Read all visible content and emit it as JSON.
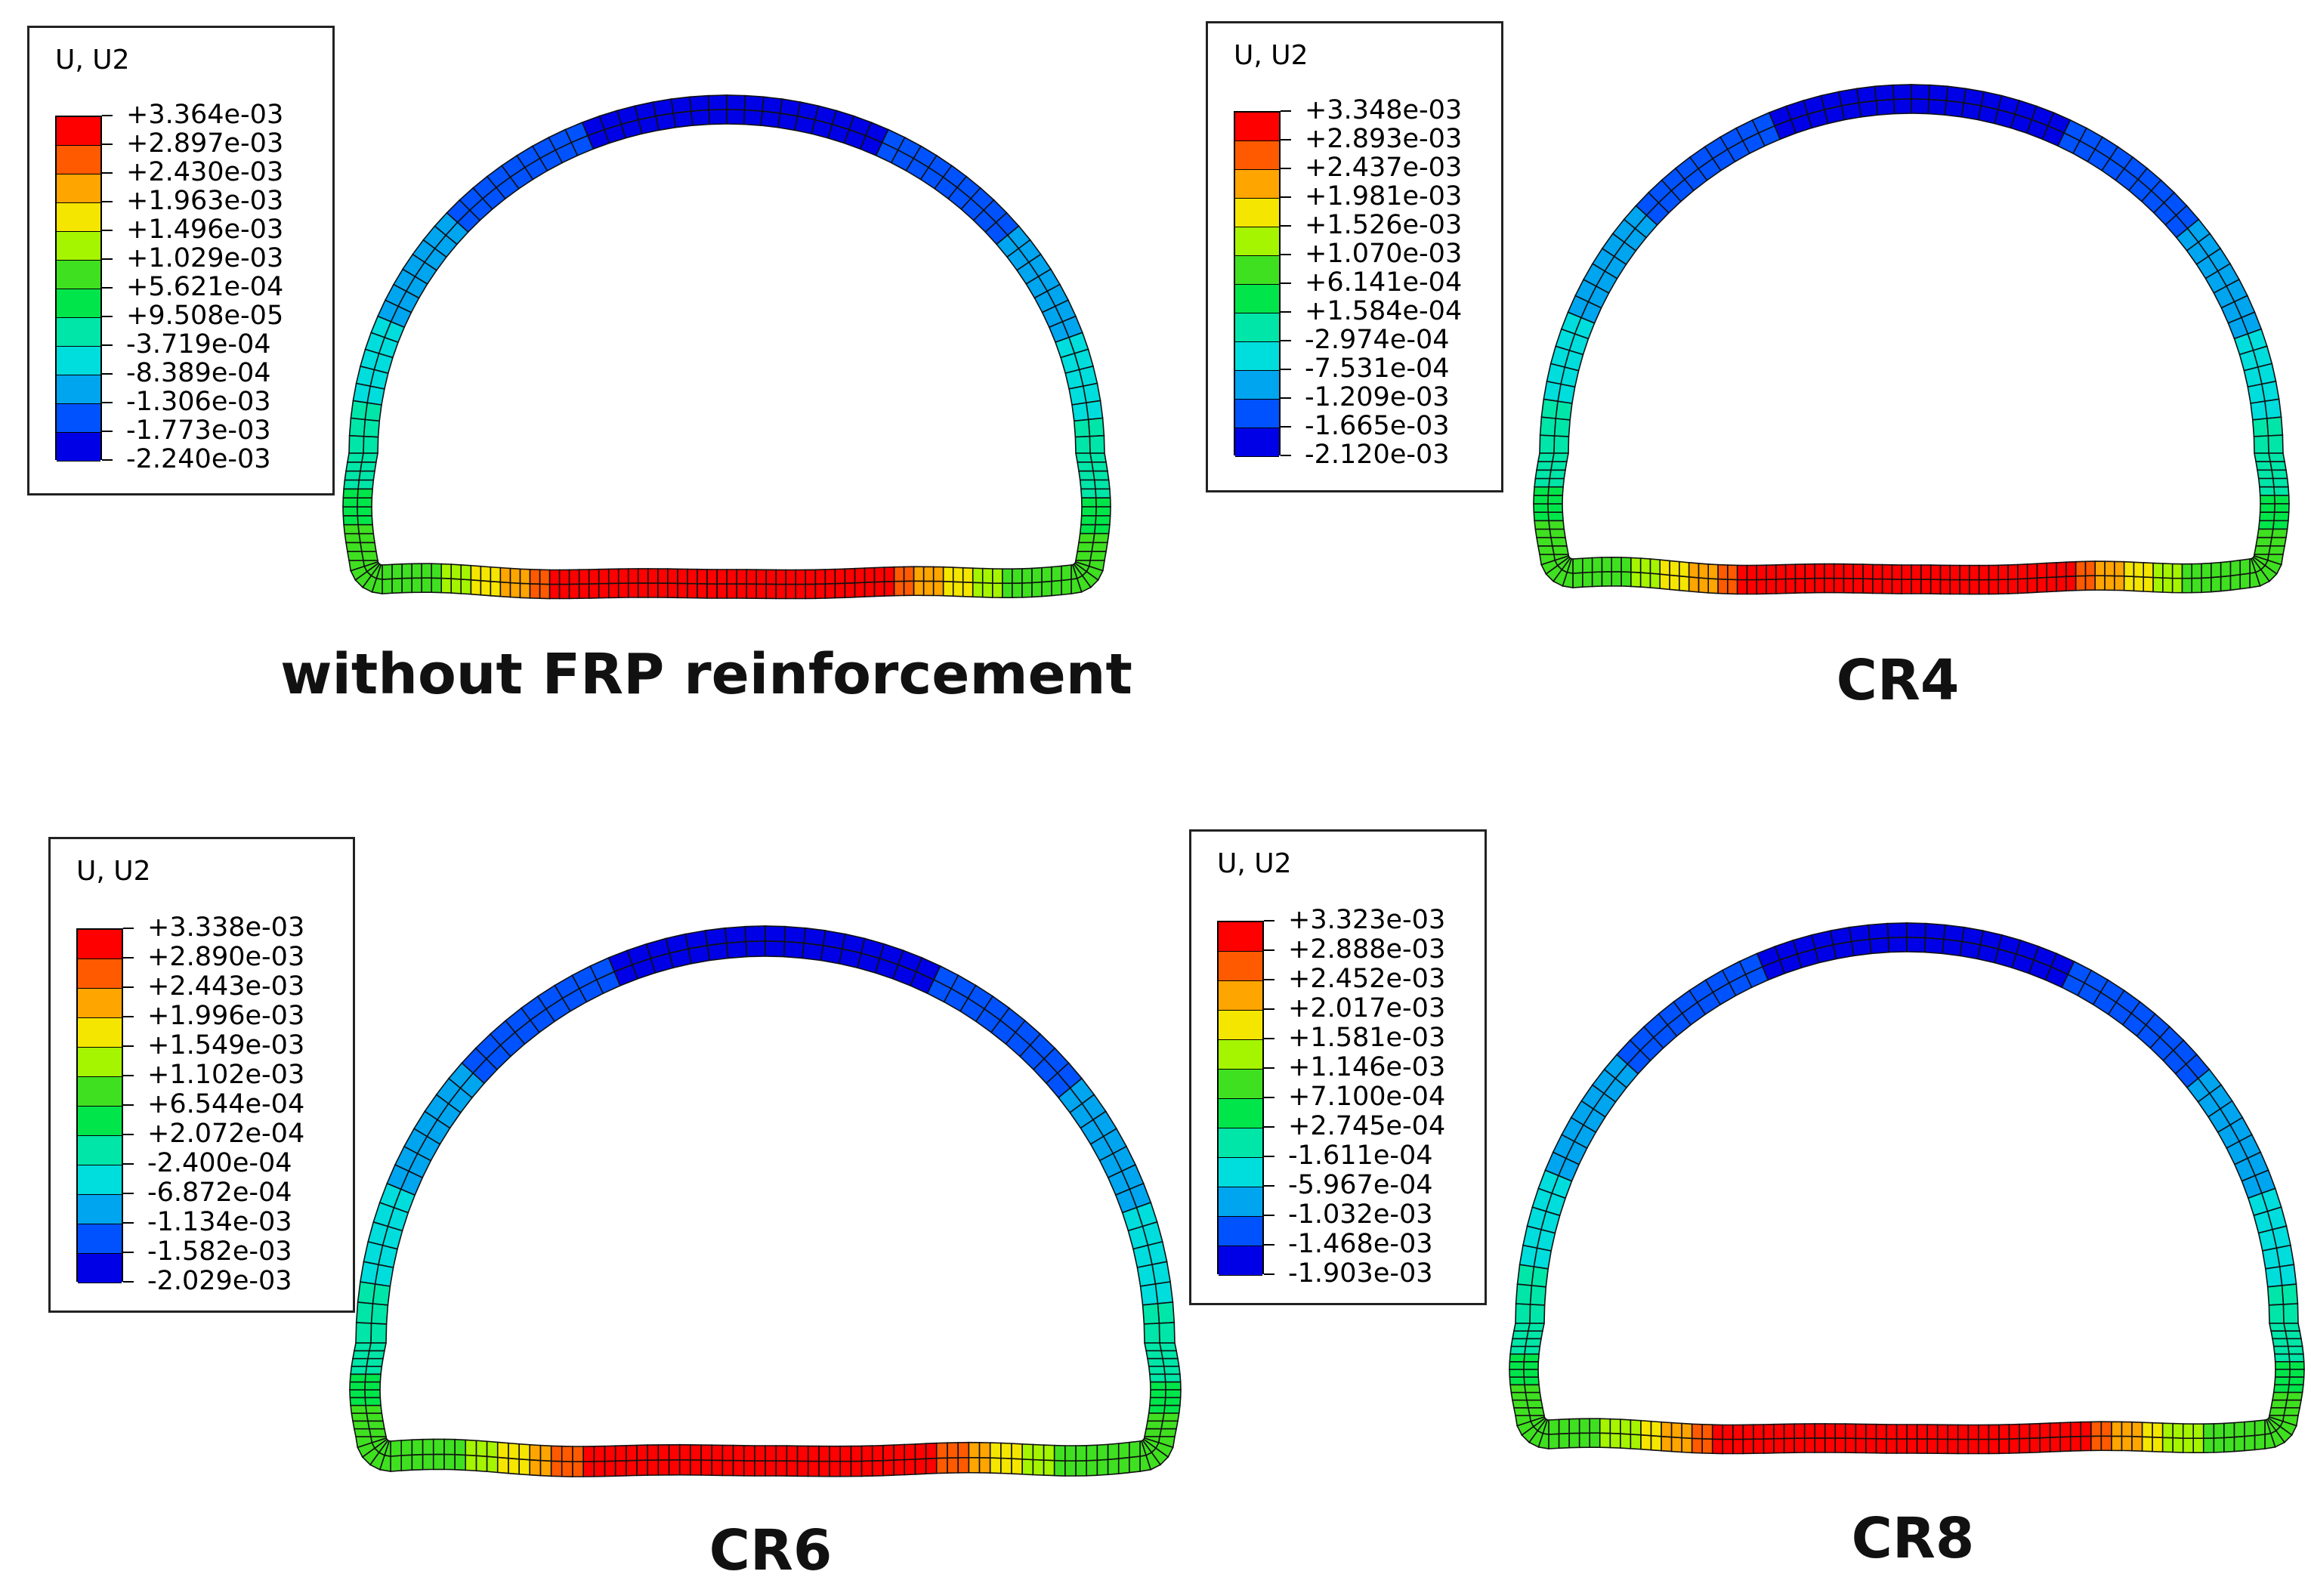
{
  "colors": [
    "#FF0000",
    "#FF5A00",
    "#FFA500",
    "#F5E600",
    "#A5F500",
    "#3FE020",
    "#00E64A",
    "#00E6A8",
    "#00DDDD",
    "#00A5F0",
    "#0052FF",
    "#0000E6"
  ],
  "panels": [
    {
      "id": "no-frp",
      "legend_title": "U, U2",
      "values": [
        "+3.364e-03",
        "+2.897e-03",
        "+2.430e-03",
        "+1.963e-03",
        "+1.496e-03",
        "+1.029e-03",
        "+5.621e-04",
        "+9.508e-05",
        "-3.719e-04",
        "-8.389e-04",
        "-1.306e-03",
        "-1.773e-03",
        "-2.240e-03"
      ],
      "caption": "without FRP reinforcement"
    },
    {
      "id": "cr4",
      "legend_title": "U, U2",
      "values": [
        "+3.348e-03",
        "+2.893e-03",
        "+2.437e-03",
        "+1.981e-03",
        "+1.526e-03",
        "+1.070e-03",
        "+6.141e-04",
        "+1.584e-04",
        "-2.974e-04",
        "-7.531e-04",
        "-1.209e-03",
        "-1.665e-03",
        "-2.120e-03"
      ],
      "caption": "CR4"
    },
    {
      "id": "cr6",
      "legend_title": "U, U2",
      "values": [
        "+3.338e-03",
        "+2.890e-03",
        "+2.443e-03",
        "+1.996e-03",
        "+1.549e-03",
        "+1.102e-03",
        "+6.544e-04",
        "+2.072e-04",
        "-2.400e-04",
        "-6.872e-04",
        "-1.134e-03",
        "-1.582e-03",
        "-2.029e-03"
      ],
      "caption": "CR6"
    },
    {
      "id": "cr8",
      "legend_title": "U, U2",
      "values": [
        "+3.323e-03",
        "+2.888e-03",
        "+2.452e-03",
        "+2.017e-03",
        "+1.581e-03",
        "+1.146e-03",
        "+7.100e-04",
        "+2.745e-04",
        "-1.611e-04",
        "-5.967e-04",
        "-1.032e-03",
        "-1.468e-03",
        "-1.903e-03"
      ],
      "caption": "CR8"
    }
  ]
}
